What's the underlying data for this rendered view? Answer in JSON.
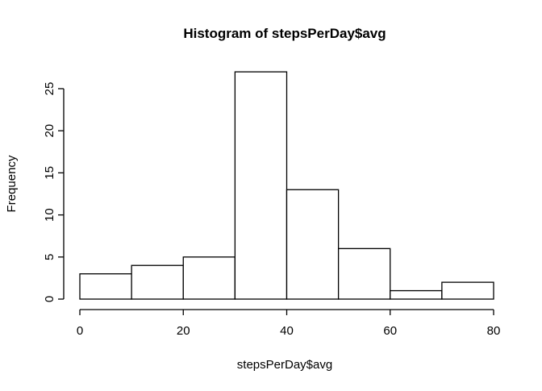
{
  "chart_data": {
    "type": "bar",
    "title": "Histogram of stepsPerDay$avg",
    "xlabel": "stepsPerDay$avg",
    "ylabel": "Frequency",
    "bins": [
      {
        "from": 0,
        "to": 10,
        "count": 3
      },
      {
        "from": 10,
        "to": 20,
        "count": 4
      },
      {
        "from": 20,
        "to": 30,
        "count": 5
      },
      {
        "from": 30,
        "to": 40,
        "count": 27
      },
      {
        "from": 40,
        "to": 50,
        "count": 13
      },
      {
        "from": 50,
        "to": 60,
        "count": 6
      },
      {
        "from": 60,
        "to": 70,
        "count": 1
      },
      {
        "from": 70,
        "to": 80,
        "count": 2
      }
    ],
    "xlim": [
      0,
      80
    ],
    "ylim": [
      0,
      27
    ],
    "xticks": [
      0,
      20,
      40,
      60,
      80
    ],
    "yticks": [
      0,
      5,
      10,
      15,
      20,
      25
    ],
    "grid": false,
    "colors": {
      "bar_fill": "#ffffff",
      "bar_stroke": "#000000"
    }
  }
}
